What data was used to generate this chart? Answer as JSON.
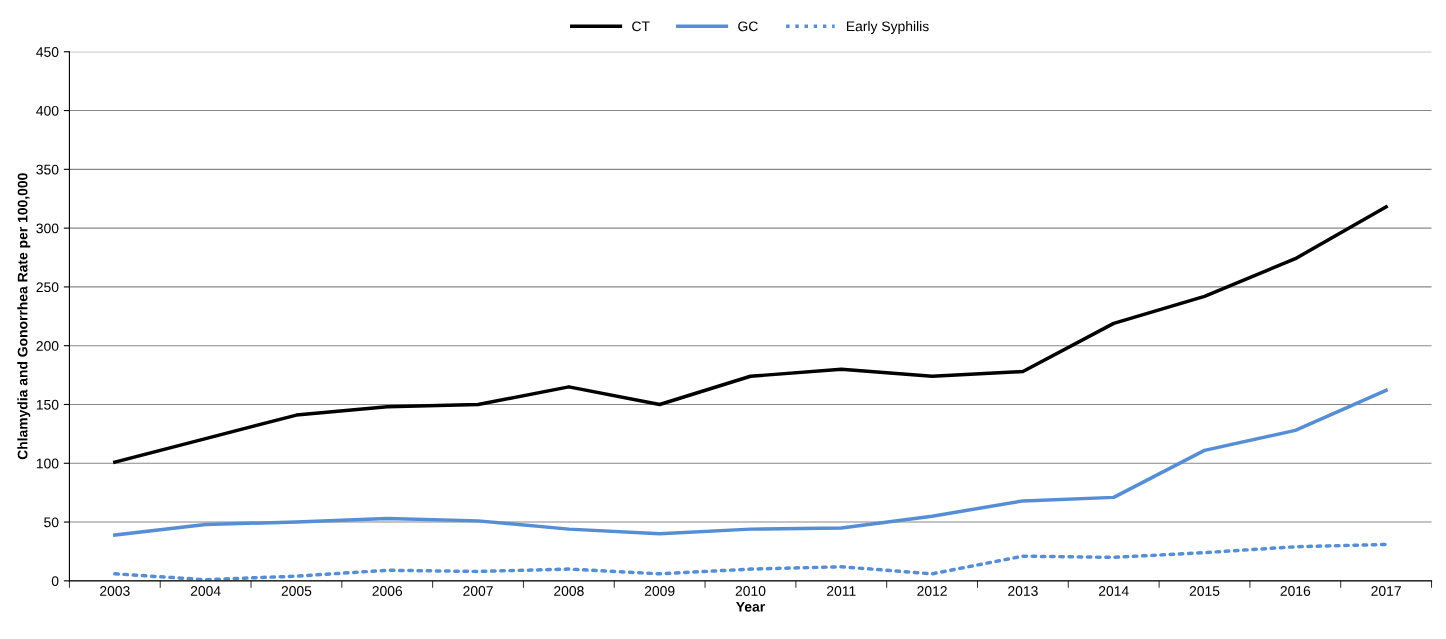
{
  "chart_data": {
    "type": "line",
    "xlabel": "Year",
    "ylabel": "Chlamydia and Gonorrhea Rate per 100,000",
    "categories": [
      "2003",
      "2004",
      "2005",
      "2006",
      "2007",
      "2008",
      "2009",
      "2010",
      "2011",
      "2012",
      "2013",
      "2014",
      "2015",
      "2016",
      "2017"
    ],
    "series": [
      {
        "name": "CT",
        "color": "#000000",
        "line_style": "solid",
        "values": [
          101,
          121,
          141,
          148,
          150,
          165,
          150,
          174,
          180,
          174,
          178,
          219,
          242,
          274,
          318
        ]
      },
      {
        "name": "GC",
        "color": "#558ed5",
        "line_style": "solid",
        "values": [
          39,
          48,
          50,
          53,
          51,
          44,
          40,
          44,
          45,
          55,
          68,
          71,
          111,
          128,
          162
        ]
      },
      {
        "name": "Early Syphilis",
        "color": "#558ed5",
        "line_style": "dotted",
        "values": [
          6,
          1,
          4,
          9,
          8,
          10,
          6,
          10,
          12,
          6,
          21,
          20,
          24,
          29,
          31
        ]
      }
    ],
    "ylim": [
      0,
      450
    ],
    "yticks": [
      0,
      50,
      100,
      150,
      200,
      250,
      300,
      350,
      400,
      450
    ],
    "grid": "y",
    "legend": "top",
    "marker": "none"
  }
}
